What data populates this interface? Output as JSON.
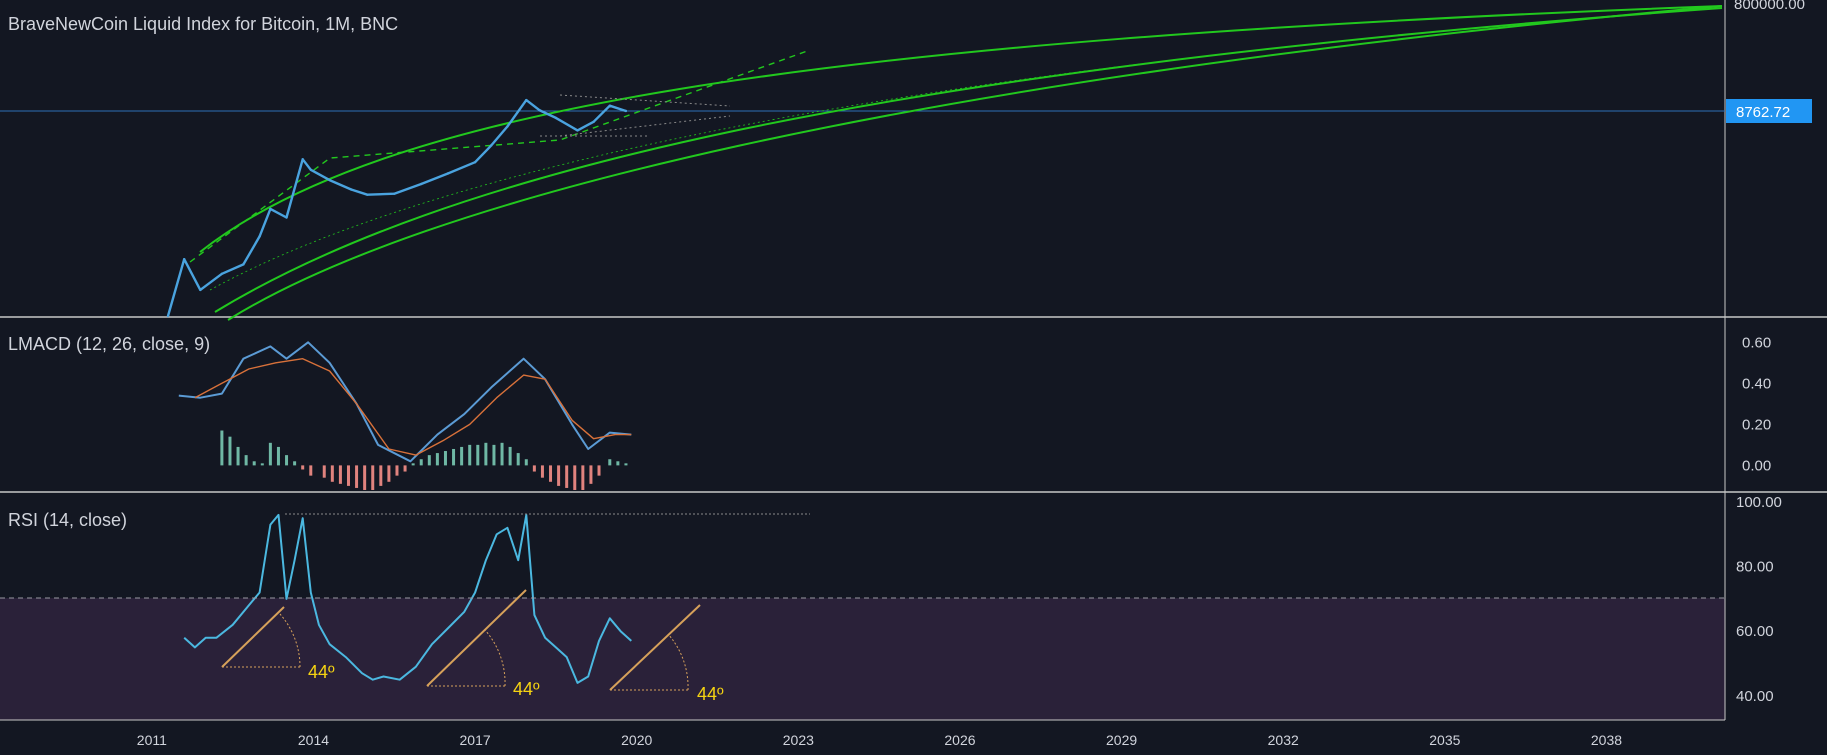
{
  "chart_data": [
    {
      "type": "line",
      "title": "BraveNewCoin Liquid Index for Bitcoin, 1M, BNC",
      "scale": "log",
      "price_axis": {
        "top_label": "800000.00"
      },
      "last_price": {
        "label": "8762.72",
        "value": 8762.72,
        "color": "#2196f3"
      },
      "x_range": [
        2008.2,
        2040.2
      ],
      "series": [
        {
          "color": "#4aa3df",
          "x": [
            2011.3,
            2011.6,
            2011.9,
            2012.3,
            2012.7,
            2013.0,
            2013.2,
            2013.5,
            2013.8,
            2013.95,
            2014.3,
            2014.7,
            2015.0,
            2015.5,
            2016.0,
            2016.5,
            2017.0,
            2017.3,
            2017.6,
            2017.95,
            2018.2,
            2018.5,
            2018.9,
            2019.2,
            2019.5,
            2019.8
          ],
          "y": [
            0.3,
            15,
            4,
            8,
            12,
            40,
            130,
            90,
            1100,
            700,
            450,
            300,
            240,
            250,
            380,
            600,
            970,
            2000,
            4500,
            14000,
            9000,
            6500,
            3800,
            5500,
            11000,
            8760
          ]
        }
      ],
      "annotations": [
        "log growth channel (green curves)",
        "dotted trendlines"
      ],
      "colors": {
        "channel": "#22c81e",
        "price": "#4aa3df",
        "background": "#131722"
      }
    },
    {
      "type": "line",
      "title": "LMACD (12, 26, close, 9)",
      "ylim": [
        -0.12,
        0.66
      ],
      "y_ticks": [
        "0.60",
        "0.40",
        "0.20",
        "0.00"
      ],
      "y_tick_values": [
        0.6,
        0.4,
        0.2,
        0.0
      ],
      "series": [
        {
          "color": "#5b9bd5",
          "x": [
            2011.5,
            2011.9,
            2012.3,
            2012.7,
            2013.2,
            2013.5,
            2013.9,
            2014.3,
            2014.8,
            2015.2,
            2015.8,
            2016.3,
            2016.8,
            2017.3,
            2017.9,
            2018.3,
            2018.8,
            2019.1,
            2019.5,
            2019.9
          ],
          "y": [
            0.34,
            0.33,
            0.35,
            0.52,
            0.58,
            0.52,
            0.6,
            0.5,
            0.3,
            0.1,
            0.02,
            0.15,
            0.25,
            0.38,
            0.52,
            0.42,
            0.2,
            0.08,
            0.16,
            0.15
          ]
        },
        {
          "color": "#d8713a",
          "x": [
            2011.8,
            2012.3,
            2012.8,
            2013.3,
            2013.8,
            2014.3,
            2014.8,
            2015.4,
            2015.9,
            2016.4,
            2016.9,
            2017.4,
            2017.9,
            2018.3,
            2018.8,
            2019.2,
            2019.6,
            2019.9
          ],
          "y": [
            0.33,
            0.4,
            0.47,
            0.5,
            0.52,
            0.46,
            0.3,
            0.08,
            0.05,
            0.12,
            0.2,
            0.33,
            0.44,
            0.42,
            0.22,
            0.13,
            0.15,
            0.15
          ]
        }
      ],
      "histogram": {
        "x": [
          2012.3,
          2012.45,
          2012.6,
          2012.75,
          2012.9,
          2013.05,
          2013.2,
          2013.35,
          2013.5,
          2013.65,
          2013.8,
          2013.95,
          2014.2,
          2014.35,
          2014.5,
          2014.65,
          2014.8,
          2014.95,
          2015.1,
          2015.25,
          2015.4,
          2015.55,
          2015.7,
          2015.85,
          2016.0,
          2016.15,
          2016.3,
          2016.45,
          2016.6,
          2016.75,
          2016.9,
          2017.05,
          2017.2,
          2017.35,
          2017.5,
          2017.65,
          2017.8,
          2017.95,
          2018.1,
          2018.25,
          2018.4,
          2018.55,
          2018.7,
          2018.85,
          2019.0,
          2019.15,
          2019.3,
          2019.5,
          2019.65,
          2019.8
        ],
        "y": [
          0.17,
          0.14,
          0.09,
          0.05,
          0.02,
          0.01,
          0.11,
          0.09,
          0.05,
          0.02,
          -0.02,
          -0.05,
          -0.06,
          -0.08,
          -0.09,
          -0.1,
          -0.11,
          -0.12,
          -0.12,
          -0.1,
          -0.08,
          -0.05,
          -0.03,
          0.01,
          0.03,
          0.05,
          0.06,
          0.07,
          0.08,
          0.09,
          0.1,
          0.1,
          0.11,
          0.1,
          0.11,
          0.09,
          0.06,
          0.03,
          -0.03,
          -0.06,
          -0.08,
          -0.1,
          -0.11,
          -0.12,
          -0.12,
          -0.09,
          -0.05,
          0.03,
          0.02,
          0.01
        ]
      }
    },
    {
      "type": "line",
      "title": "RSI (14, close)",
      "ylim": [
        35,
        100
      ],
      "y_ticks": [
        "100.00",
        "80.00",
        "60.00",
        "40.00"
      ],
      "y_tick_values": [
        100,
        80,
        60,
        40
      ],
      "overbought_line": 70,
      "series": [
        {
          "color": "#4bb8e0",
          "x": [
            2011.6,
            2011.8,
            2012.0,
            2012.2,
            2012.5,
            2012.8,
            2013.0,
            2013.2,
            2013.35,
            2013.5,
            2013.65,
            2013.8,
            2013.95,
            2014.1,
            2014.3,
            2014.6,
            2014.9,
            2015.1,
            2015.3,
            2015.6,
            2015.9,
            2016.2,
            2016.5,
            2016.8,
            2017.0,
            2017.2,
            2017.4,
            2017.6,
            2017.8,
            2017.95,
            2018.1,
            2018.3,
            2018.5,
            2018.7,
            2018.9,
            2019.1,
            2019.3,
            2019.5,
            2019.7,
            2019.9
          ],
          "y": [
            58,
            55,
            58,
            58,
            62,
            68,
            72,
            93,
            96,
            70,
            82,
            95,
            72,
            62,
            56,
            52,
            47,
            45,
            46,
            45,
            49,
            56,
            61,
            66,
            72,
            82,
            90,
            92,
            82,
            96,
            65,
            58,
            55,
            52,
            44,
            46,
            57,
            64,
            60,
            57
          ]
        }
      ],
      "angle_labels": [
        "44º",
        "44º",
        "44º"
      ],
      "shaded_region": "purple band below 70",
      "colors": {
        "band": "#2a2139",
        "dashed_line": "#9a9aa3"
      }
    }
  ],
  "time_axis": {
    "labels": [
      "2011",
      "2014",
      "2017",
      "2020",
      "2023",
      "2026",
      "2029",
      "2032",
      "2035",
      "2038"
    ],
    "values": [
      2011,
      2014,
      2017,
      2020,
      2023,
      2026,
      2029,
      2032,
      2035,
      2038
    ]
  }
}
